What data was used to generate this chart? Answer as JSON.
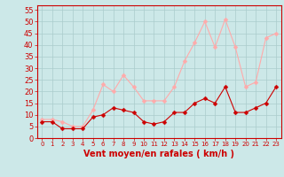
{
  "hours": [
    0,
    1,
    2,
    3,
    4,
    5,
    6,
    7,
    8,
    9,
    10,
    11,
    12,
    13,
    14,
    15,
    16,
    17,
    18,
    19,
    20,
    21,
    22,
    23
  ],
  "wind_avg": [
    7,
    7,
    4,
    4,
    4,
    9,
    10,
    13,
    12,
    11,
    7,
    6,
    7,
    11,
    11,
    15,
    17,
    15,
    22,
    11,
    11,
    13,
    15,
    22
  ],
  "wind_gust": [
    8,
    8,
    7,
    5,
    5,
    12,
    23,
    20,
    27,
    22,
    16,
    16,
    16,
    22,
    33,
    41,
    50,
    39,
    51,
    39,
    22,
    24,
    43,
    45
  ],
  "bg_color": "#cce8e8",
  "grid_color": "#aacccc",
  "avg_color": "#cc0000",
  "gust_color": "#ffaaaa",
  "xlabel": "Vent moyen/en rafales ( km/h )",
  "xlabel_color": "#cc0000",
  "tick_color": "#cc0000",
  "spine_color": "#cc0000",
  "ylim": [
    0,
    57
  ],
  "yticks": [
    0,
    5,
    10,
    15,
    20,
    25,
    30,
    35,
    40,
    45,
    50,
    55
  ],
  "xlim": [
    -0.5,
    23.5
  ],
  "marker_size": 2.5,
  "line_width": 0.8,
  "ytick_fontsize": 6,
  "xtick_fontsize": 5,
  "xlabel_fontsize": 7
}
